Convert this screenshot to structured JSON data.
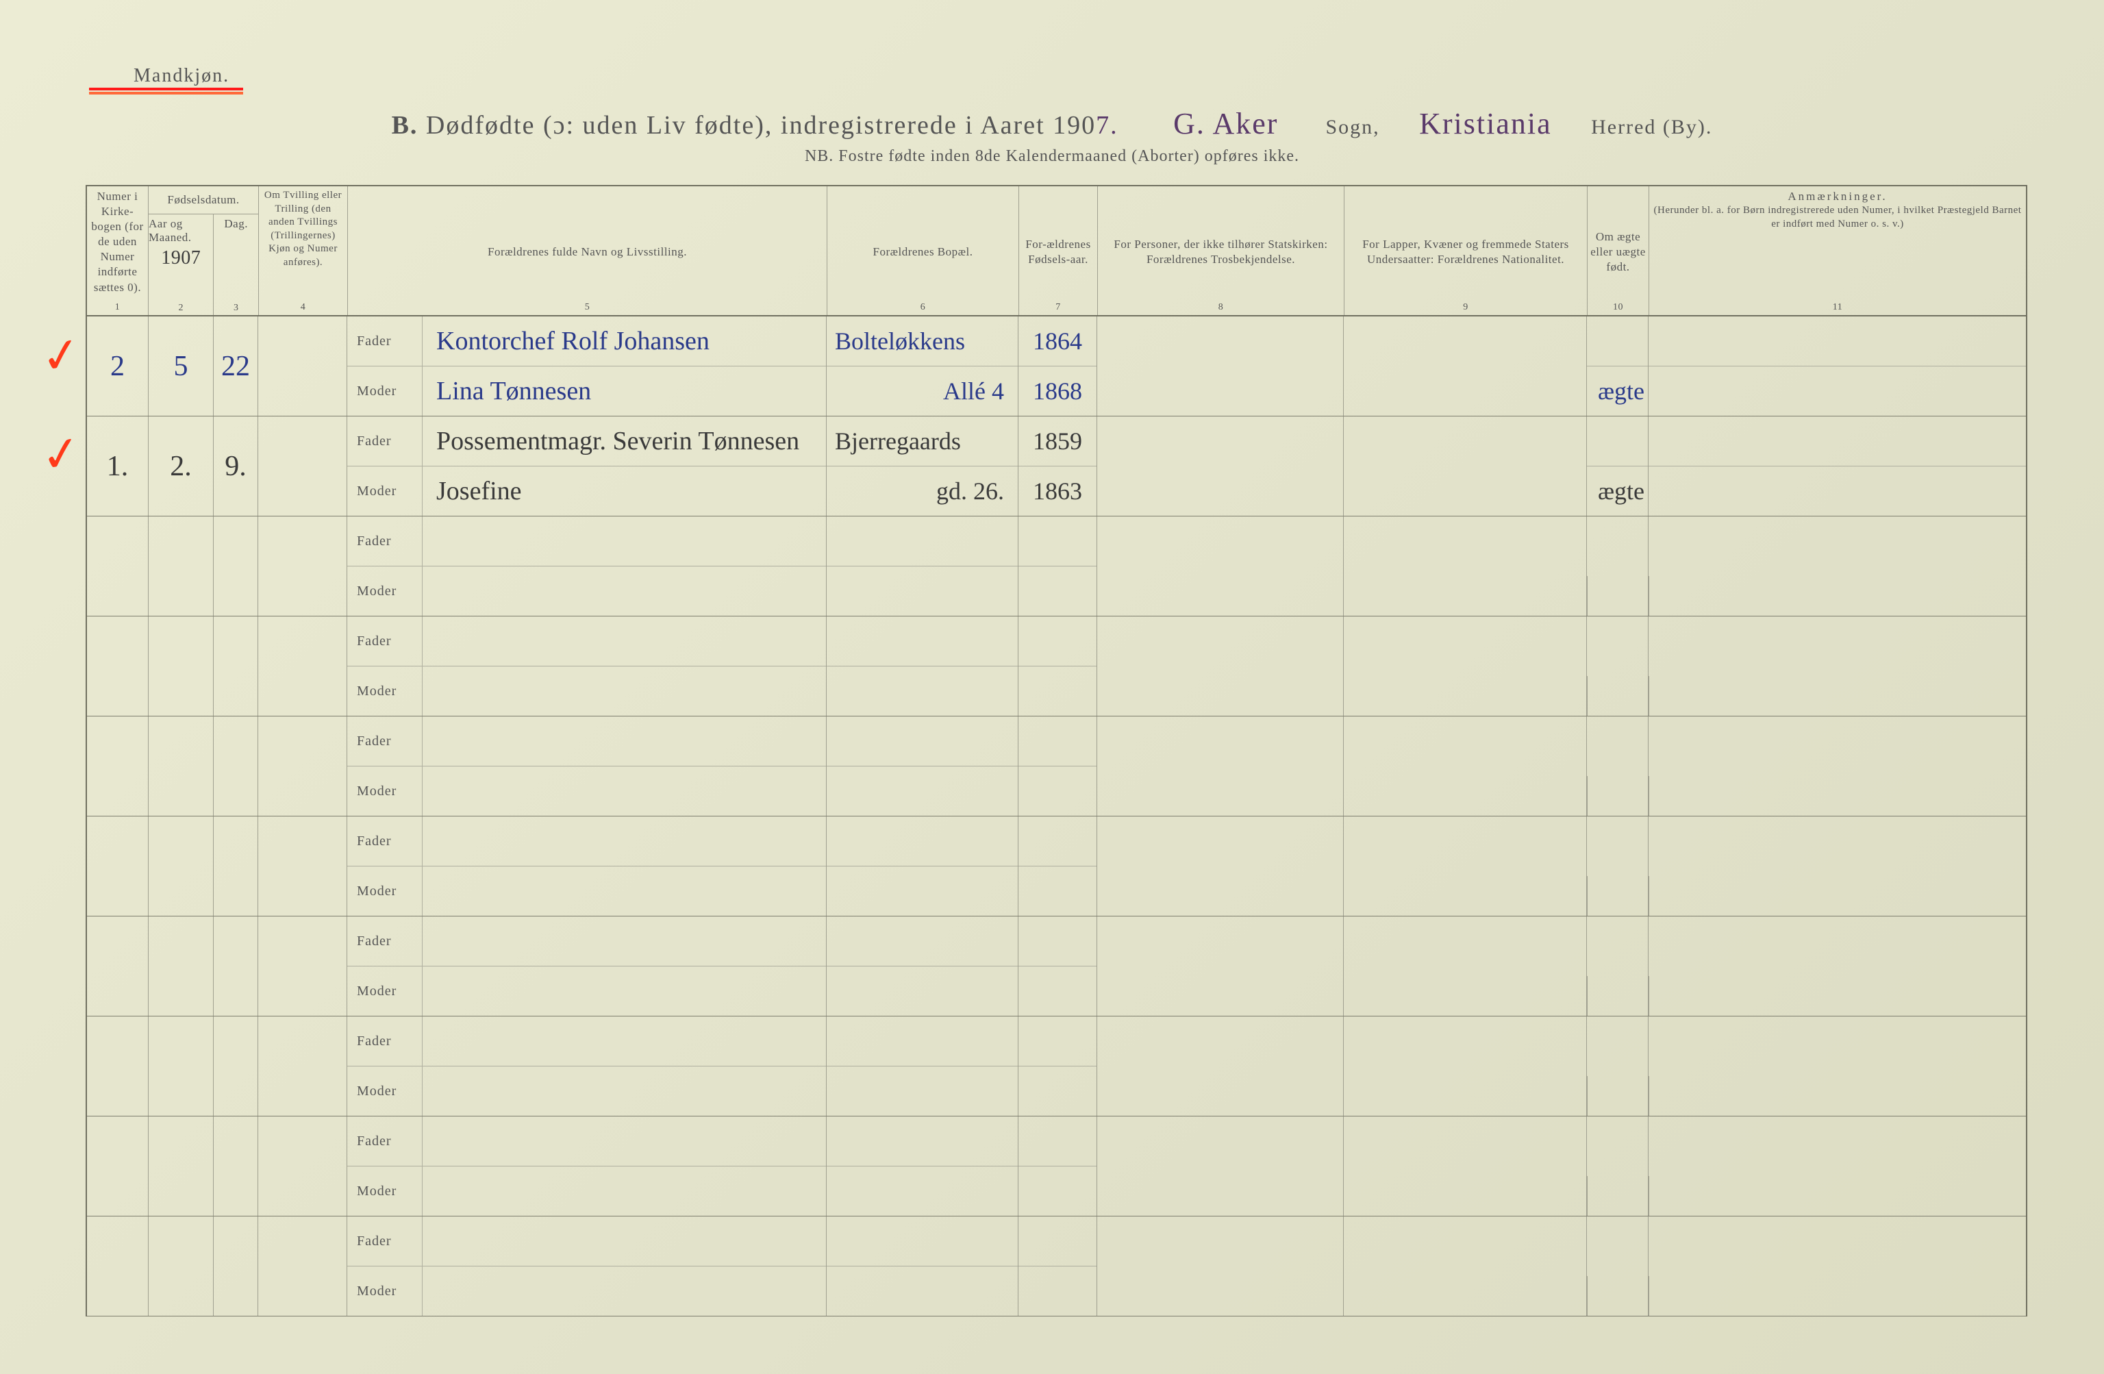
{
  "colors": {
    "paper_bg": "#e6e6ce",
    "rule": "#707060",
    "rule_light": "#a0a090",
    "print_text": "#555555",
    "red_pencil": "#ff3a1a",
    "purple_ink": "#5a3a6a",
    "blue_ink": "#2a3a8a",
    "black_ink": "#3a3a3a"
  },
  "header": {
    "gender_label": "Mandkjøn.",
    "title_prefix": "B.",
    "title_main": "Dødfødte (ɔ: uden Liv fødte), indregistrerede i Aaret 190",
    "year_suffix": "7.",
    "sogn_label": "Sogn,",
    "herred_label": "Herred (By).",
    "sogn_value": "G. Aker",
    "herred_value": "Kristiania",
    "subtitle": "NB.  Fostre fødte inden 8de Kalendermaaned (Aborter) opføres ikke."
  },
  "columns": {
    "c1": {
      "label": "Numer i Kirke-bogen (for de uden Numer indførte sættes 0).",
      "num": "1"
    },
    "c2_3_top": "Fødselsdatum.",
    "c2": {
      "label": "Aar og Maaned.",
      "year_hand": "1907",
      "num": "2"
    },
    "c3": {
      "label": "Dag.",
      "num": "3"
    },
    "c4": {
      "label": "Om Tvilling eller Trilling (den anden Tvillings (Trillingernes) Kjøn og Numer anføres).",
      "num": "4"
    },
    "c5": {
      "label": "Forældrenes fulde Navn og Livsstilling.",
      "sub_father": "Fader",
      "sub_mother": "Moder",
      "num": "5"
    },
    "c6": {
      "label": "Forældrenes Bopæl.",
      "num": "6"
    },
    "c7": {
      "label": "For-ældrenes Fødsels-aar.",
      "num": "7"
    },
    "c8": {
      "label": "For Personer, der ikke tilhører Statskirken: Forældrenes Trosbekjendelse.",
      "num": "8"
    },
    "c9": {
      "label": "For Lapper, Kvæner og fremmede Staters Undersaatter: Forældrenes Nationalitet.",
      "num": "9"
    },
    "c10": {
      "label": "Om ægte eller uægte født.",
      "num": "10"
    },
    "c11": {
      "label": "Anmærkninger.",
      "sublabel": "(Herunder bl. a. for Børn indregistrerede uden Numer, i hvilket Præstegjeld Barnet er indført med Numer o. s. v.)",
      "num": "11"
    }
  },
  "entries": [
    {
      "check": "✓",
      "c1": "2",
      "c2": "5",
      "c3": "22",
      "father_name": "Kontorchef  Rolf  Johansen",
      "mother_name": "Lina   Tønnesen",
      "c6_top": "Bolteløkkens",
      "c6_bot": "Allé        4",
      "c7_top": "1864",
      "c7_bot": "1868",
      "c10": "ægte",
      "ink": "blue"
    },
    {
      "check": "✓",
      "c1": "1.",
      "c2": "2.",
      "c3": "9.",
      "father_name": "Possementmagr.  Severin  Tønnesen",
      "mother_name": "Josefine",
      "c6_top": "Bjerregaards",
      "c6_bot": "gd. 26.",
      "c7_top": "1859",
      "c7_bot": "1863",
      "c10": "ægte",
      "ink": "ink"
    },
    {
      "blank": true
    },
    {
      "blank": true
    },
    {
      "blank": true
    },
    {
      "blank": true
    },
    {
      "blank": true
    },
    {
      "blank": true
    },
    {
      "blank": true
    },
    {
      "blank": true
    }
  ]
}
